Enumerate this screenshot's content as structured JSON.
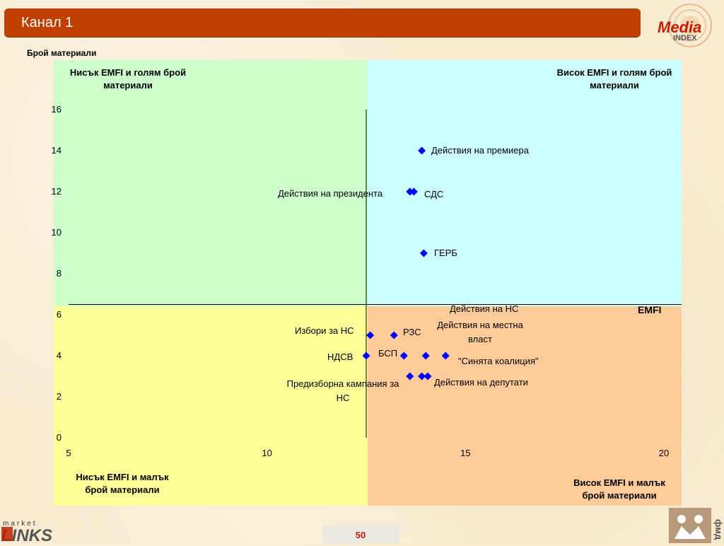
{
  "header": {
    "title": "Канал 1"
  },
  "logos": {
    "media_index": [
      "Media",
      "INDEX"
    ],
    "market_links": [
      "market",
      "LINKS"
    ],
    "fmd": "фмд"
  },
  "footer": {
    "page_number": "50"
  },
  "colors": {
    "title_bar": "#bf3f00",
    "q_low_high": "#ccffcc",
    "q_high_high": "#ccffff",
    "q_low_low": "#ffff99",
    "q_high_low": "#ffcc99",
    "marker": "#0000ff"
  },
  "chart_data": {
    "type": "scatter",
    "ylabel": "Брой материали",
    "xlabel": "EMFI",
    "xlim": [
      5,
      20
    ],
    "ylim": [
      0,
      16
    ],
    "x_ticks": [
      5,
      10,
      15,
      20
    ],
    "y_ticks": [
      0,
      2,
      4,
      6,
      8,
      10,
      12,
      14,
      16
    ],
    "divider_x": 12.5,
    "divider_y": 6.5,
    "quadrants": {
      "top_left": "Нисък EMFI и голям брой материали",
      "top_right": "Висок EMFI и голям брой материали",
      "bottom_left": "Нисък EMFI и малък брой материали",
      "bottom_right": "Висок EMFI и малък брой материали"
    },
    "points": [
      {
        "label": "Действия на премиера",
        "x": 13.9,
        "y": 14
      },
      {
        "label": "Действия на президента",
        "x": 13.6,
        "y": 12
      },
      {
        "label": "СДС",
        "x": 13.7,
        "y": 12
      },
      {
        "label": "ГЕРБ",
        "x": 13.95,
        "y": 9
      },
      {
        "label": "Действия на НС",
        "x": 14.5,
        "y": 4
      },
      {
        "label": "Избори за НС",
        "x": 12.6,
        "y": 5
      },
      {
        "label": "РЗС",
        "x": 13.2,
        "y": 5
      },
      {
        "label": "Действия на местна власт",
        "x": 14.0,
        "y": 4
      },
      {
        "label": "НДСВ",
        "x": 12.5,
        "y": 4
      },
      {
        "label": "БСП",
        "x": 13.45,
        "y": 4
      },
      {
        "label": "\"Синята коалиция\"",
        "x": 14.05,
        "y": 3
      },
      {
        "label": "Предизборна кампания за НС",
        "x": 13.6,
        "y": 3
      },
      {
        "label": "Действия на депутати",
        "x": 13.9,
        "y": 3
      }
    ]
  }
}
